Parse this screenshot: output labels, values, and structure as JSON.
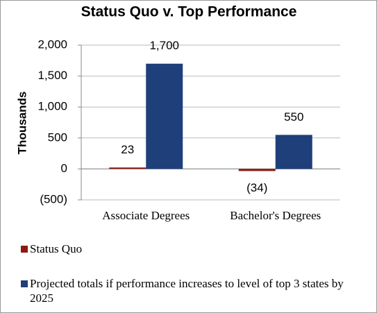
{
  "chart_data": {
    "type": "bar",
    "title": "Status Quo v. Top Performance",
    "y_label": "Thousands",
    "categories": [
      "Associate Degrees",
      "Bachelor's Degrees"
    ],
    "series": [
      {
        "name": "Status Quo",
        "color": "#8b1a12",
        "values": [
          23,
          -34
        ],
        "value_labels": [
          "23",
          "(34)"
        ]
      },
      {
        "name": "Projected totals if performance increases to level of top 3 states by 2025",
        "color": "#1f3f7a",
        "values": [
          1700,
          550
        ],
        "value_labels": [
          "1,700",
          "550"
        ]
      }
    ],
    "ylim": [
      -500,
      2000
    ],
    "yticks": [
      {
        "value": -500,
        "label": "(500)"
      },
      0,
      500,
      {
        "value": 1000,
        "label": "1,000"
      },
      {
        "value": 1500,
        "label": "1,500"
      },
      {
        "value": 2000,
        "label": "2,000"
      }
    ],
    "grid": true,
    "legend": "bottom"
  }
}
